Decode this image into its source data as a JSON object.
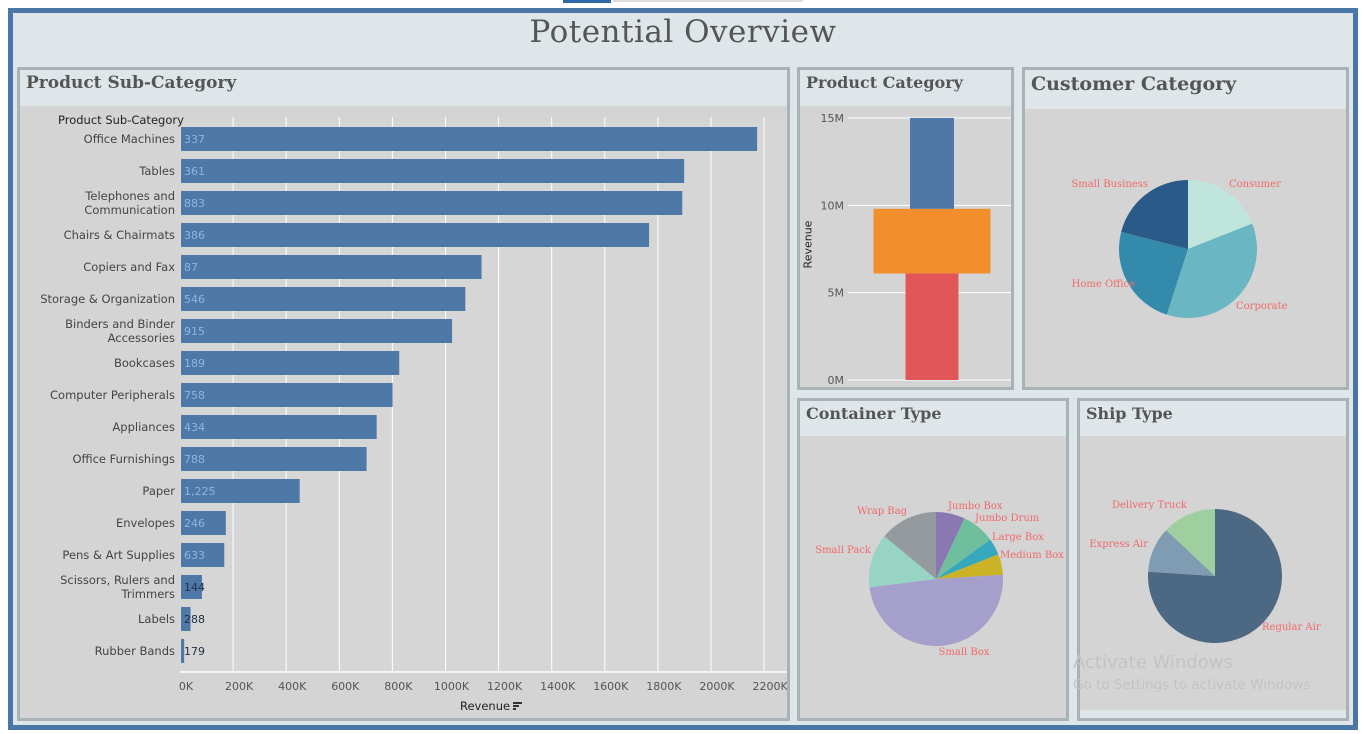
{
  "dashboard": {
    "title": "Potential Overview"
  },
  "colors": {
    "frame": "#4a77a8",
    "bar": "#4e79a7",
    "orange": "#f28e2b",
    "red": "#e15759"
  },
  "watermark": {
    "line1": "Activate Windows",
    "line2": "Go to Settings to activate Windows."
  },
  "panels": {
    "subcategory": {
      "title": "Product Sub-Category",
      "row_header": "Product Sub-Category",
      "x_axis_label": "Revenue"
    },
    "category": {
      "title": "Product Category",
      "y_axis_label": "Revenue"
    },
    "customer": {
      "title": "Customer Category"
    },
    "container": {
      "title": "Container Type"
    },
    "ship": {
      "title": "Ship Type"
    }
  },
  "chart_data": [
    {
      "type": "bar",
      "orientation": "horizontal",
      "title": "Product Sub-Category",
      "xlabel": "Revenue",
      "categories": [
        "Office Machines",
        "Tables",
        "Telephones and Communication",
        "Chairs & Chairmats",
        "Copiers and Fax",
        "Storage & Organization",
        "Binders and Binder Accessories",
        "Bookcases",
        "Computer Peripherals",
        "Appliances",
        "Office Furnishings",
        "Paper",
        "Envelopes",
        "Pens & Art Supplies",
        "Scissors, Rulers and Trimmers",
        "Labels",
        "Rubber Bands"
      ],
      "category_lines": [
        [
          "Office Machines"
        ],
        [
          "Tables"
        ],
        [
          "Telephones and",
          "Communication"
        ],
        [
          "Chairs & Chairmats"
        ],
        [
          "Copiers and Fax"
        ],
        [
          "Storage & Organization"
        ],
        [
          "Binders and Binder",
          "Accessories"
        ],
        [
          "Bookcases"
        ],
        [
          "Computer Peripherals"
        ],
        [
          "Appliances"
        ],
        [
          "Office Furnishings"
        ],
        [
          "Paper"
        ],
        [
          "Envelopes"
        ],
        [
          "Pens & Art Supplies"
        ],
        [
          "Scissors, Rulers and",
          "Trimmers"
        ],
        [
          "Labels"
        ],
        [
          "Rubber Bands"
        ]
      ],
      "values": [
        2170000,
        1895000,
        1888000,
        1763000,
        1132000,
        1071000,
        1021000,
        822000,
        797000,
        737000,
        699000,
        447000,
        169000,
        163000,
        79000,
        36000,
        12000
      ],
      "data_labels": [
        "337",
        "361",
        "883",
        "386",
        "87",
        "546",
        "915",
        "189",
        "758",
        "434",
        "788",
        "1,225",
        "246",
        "633",
        "144",
        "288",
        "179"
      ],
      "xlim": [
        0,
        2300000
      ],
      "xticks": [
        "0K",
        "200K",
        "400K",
        "600K",
        "800K",
        "1000K",
        "1200K",
        "1400K",
        "1600K",
        "1800K",
        "2000K",
        "2200K"
      ],
      "grid": true
    },
    {
      "type": "bar",
      "stacked": true,
      "title": "Product Category",
      "ylabel": "Revenue",
      "ylim": [
        0,
        15000000
      ],
      "yticks": [
        "0M",
        "5M",
        "10M",
        "15M"
      ],
      "segments": [
        {
          "value": 6100000,
          "color": "#e15759"
        },
        {
          "value": 3700000,
          "color": "#f28e2b"
        },
        {
          "value": 5200000,
          "color": "#4e79a7"
        }
      ]
    },
    {
      "type": "pie",
      "title": "Customer Category",
      "slices": [
        {
          "label": "Consumer",
          "value": 19,
          "color": "#bfe5dd"
        },
        {
          "label": "Corporate",
          "value": 36,
          "color": "#6ab6c2"
        },
        {
          "label": "Home Office",
          "value": 24,
          "color": "#338aab"
        },
        {
          "label": "Small Business",
          "value": 21,
          "color": "#2a5a87"
        }
      ]
    },
    {
      "type": "pie",
      "title": "Container Type",
      "slices": [
        {
          "label": "Jumbo Box",
          "value": 7,
          "color": "#8a78b3"
        },
        {
          "label": "Jumbo Drum",
          "value": 8,
          "color": "#6fbf9e"
        },
        {
          "label": "Large Box",
          "value": 4,
          "color": "#36a7bd"
        },
        {
          "label": "Medium Box",
          "value": 5,
          "color": "#cbb325"
        },
        {
          "label": "Small Box",
          "value": 49,
          "color": "#a49fcb"
        },
        {
          "label": "Small Pack",
          "value": 13,
          "color": "#97d4c4"
        },
        {
          "label": "Wrap Bag",
          "value": 14,
          "color": "#959a9e"
        }
      ]
    },
    {
      "type": "pie",
      "title": "Ship Type",
      "slices": [
        {
          "label": "Regular Air",
          "value": 76,
          "color": "#4d6882"
        },
        {
          "label": "Express Air",
          "value": 11,
          "color": "#7f9cb3"
        },
        {
          "label": "Delivery Truck",
          "value": 13,
          "color": "#9fce9f"
        }
      ]
    }
  ]
}
